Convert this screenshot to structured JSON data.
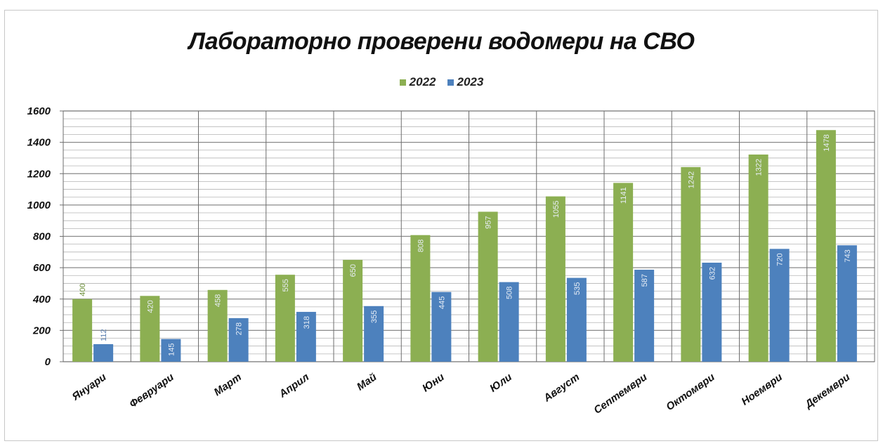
{
  "chart_data": {
    "type": "bar",
    "title": "Лабораторно проверени водомери на СВО",
    "xlabel": "",
    "ylabel": "",
    "ylim": [
      0,
      1600
    ],
    "yticks": [
      "0",
      "200",
      "400",
      "600",
      "800",
      "1000",
      "1200",
      "1400",
      "1600"
    ],
    "grid": true,
    "legend_position": "top-center",
    "categories": [
      "Януари",
      "Февруари",
      "Март",
      "Април",
      "Май",
      "Юни",
      "Юли",
      "Август",
      "Септември",
      "Октомври",
      "Ноември",
      "Декември"
    ],
    "series": [
      {
        "name": "2022",
        "color": "#8caf52",
        "label_color": "#6a8e37",
        "values": [
          400,
          420,
          458,
          555,
          650,
          808,
          957,
          1055,
          1141,
          1242,
          1322,
          1478
        ]
      },
      {
        "name": "2023",
        "color": "#4d81bd",
        "label_color": "#5a7fb0",
        "values": [
          112,
          145,
          278,
          318,
          355,
          445,
          508,
          535,
          587,
          632,
          720,
          743
        ]
      }
    ]
  }
}
